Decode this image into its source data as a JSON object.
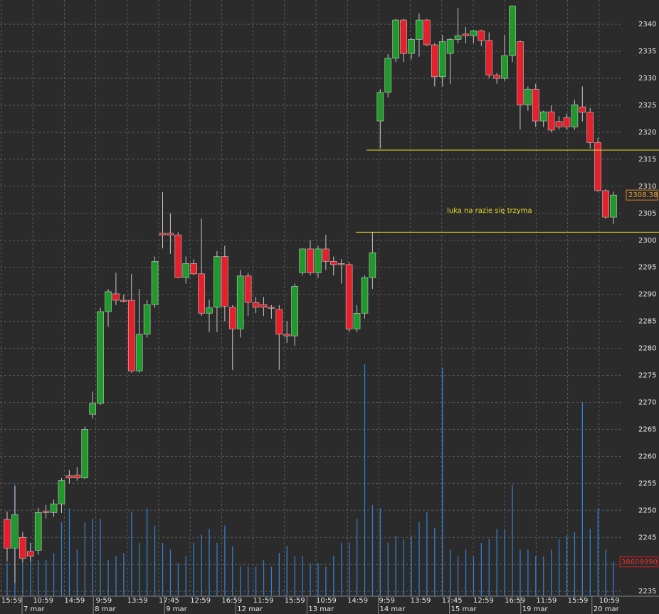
{
  "chart_data": {
    "type": "candlestick",
    "open": [
      2248.3,
      2243.0,
      2245.0,
      2242.4,
      2242.6,
      2249.8,
      2249.6,
      2251.2,
      2256.4,
      2256.5,
      2256.0,
      2267.8,
      2269.8,
      2286.8,
      2290.1,
      2288.9,
      2288.9,
      2275.8,
      2282.6,
      2288.1,
      2301.3,
      2301.3,
      2301.0,
      2293.1,
      2295.7,
      2293.8,
      2286.5,
      2287.6,
      2297.0,
      2287.6,
      2283.6,
      2293.4,
      2288.5,
      2288.1,
      2287.6,
      2287.2,
      2282.6,
      2282.3,
      2294.0,
      2298.4,
      2294.0,
      2298.4,
      2296.1,
      2295.7,
      2295.5,
      2283.6,
      2286.5,
      2293.1,
      2322.1,
      2327.4,
      2333.7,
      2340.8,
      2334.6,
      2337.2,
      2340.8,
      2336.2,
      2330.3,
      2334.6,
      2337.2,
      2338.2,
      2337.9,
      2338.8,
      2337.0,
      2330.6,
      2330.0,
      2334.2,
      2336.8,
      2325.1,
      2328.0,
      2322.1,
      2323.8,
      2322.0,
      2322.7,
      2321.0,
      2324.7,
      2323.7,
      2318.1,
      2309.2,
      2304.3
    ],
    "high": [
      2249.8,
      2254.5,
      2246.0,
      2244.0,
      2250.5,
      2251.0,
      2252.0,
      2256.0,
      2257.5,
      2258.0,
      2265.5,
      2272.0,
      2287.5,
      2291.0,
      2294.0,
      2290.0,
      2293.8,
      2291.0,
      2289.0,
      2297.0,
      2308.9,
      2305.0,
      2301.5,
      2297.0,
      2296.5,
      2304.0,
      2289.0,
      2298.0,
      2299.0,
      2288.0,
      2294.5,
      2294.0,
      2289.5,
      2289.5,
      2288.0,
      2288.0,
      2285.0,
      2292.0,
      2298.5,
      2300.0,
      2299.0,
      2301.0,
      2297.0,
      2296.5,
      2296.0,
      2288.0,
      2293.5,
      2301.5,
      2328.0,
      2334.5,
      2341.0,
      2341.0,
      2337.5,
      2342.0,
      2341.0,
      2336.5,
      2338.0,
      2337.5,
      2343.0,
      2339.5,
      2339.0,
      2339.0,
      2338.5,
      2331.0,
      2338.0,
      2343.5,
      2337.0,
      2328.5,
      2329.0,
      2324.0,
      2325.0,
      2323.0,
      2323.5,
      2326.0,
      2328.5,
      2324.5,
      2319.0,
      2309.5,
      2309.0
    ],
    "low": [
      2240.5,
      2236.5,
      2240.3,
      2240.5,
      2241.8,
      2248.5,
      2248.8,
      2249.5,
      2255.0,
      2255.5,
      2255.8,
      2267.0,
      2269.5,
      2284.0,
      2288.0,
      2288.5,
      2275.5,
      2275.5,
      2282.0,
      2287.5,
      2298.5,
      2297.5,
      2293.0,
      2292.0,
      2293.5,
      2286.0,
      2283.0,
      2283.0,
      2285.0,
      2276.0,
      2282.0,
      2286.0,
      2286.5,
      2286.0,
      2285.5,
      2276.0,
      2281.0,
      2280.5,
      2293.5,
      2293.5,
      2293.0,
      2294.5,
      2293.5,
      2292.0,
      2283.0,
      2283.0,
      2285.5,
      2291.0,
      2317.0,
      2326.5,
      2333.0,
      2333.0,
      2333.5,
      2334.0,
      2336.0,
      2328.5,
      2328.5,
      2329.0,
      2336.5,
      2336.5,
      2336.5,
      2336.0,
      2330.0,
      2329.0,
      2329.5,
      2333.0,
      2320.5,
      2324.0,
      2321.0,
      2321.0,
      2320.0,
      2320.5,
      2320.5,
      2320.5,
      2322.0,
      2317.0,
      2309.0,
      2304.0,
      2303.0
    ],
    "close": [
      2243.0,
      2249.2,
      2241.1,
      2241.5,
      2249.6,
      2249.6,
      2251.2,
      2255.5,
      2256.0,
      2256.0,
      2265.0,
      2269.8,
      2286.8,
      2290.5,
      2288.9,
      2288.7,
      2275.8,
      2282.6,
      2288.1,
      2296.1,
      2301.0,
      2301.0,
      2293.1,
      2295.7,
      2293.8,
      2286.5,
      2287.5,
      2297.0,
      2287.8,
      2283.6,
      2293.4,
      2288.5,
      2287.6,
      2287.6,
      2287.4,
      2282.6,
      2282.3,
      2291.5,
      2298.4,
      2294.0,
      2298.4,
      2296.1,
      2295.5,
      2295.5,
      2283.6,
      2286.5,
      2293.1,
      2297.7,
      2327.4,
      2333.7,
      2340.8,
      2334.6,
      2337.2,
      2340.8,
      2336.2,
      2330.3,
      2336.8,
      2337.2,
      2337.9,
      2337.9,
      2338.8,
      2337.0,
      2330.6,
      2330.0,
      2334.2,
      2343.4,
      2325.1,
      2328.0,
      2322.1,
      2323.8,
      2320.4,
      2321.0,
      2321.0,
      2325.1,
      2323.7,
      2318.1,
      2309.2,
      2304.3,
      2308.38
    ],
    "volume": [
      37100000,
      125800000,
      37100000,
      60200000,
      40900000,
      40900000,
      48600000,
      83400000,
      98800000,
      52500000,
      83400000,
      87200000,
      87200000,
      40900000,
      44800000,
      48600000,
      95000000,
      60200000,
      98800000,
      79500000,
      60200000,
      52500000,
      37100000,
      44800000,
      60200000,
      69500000,
      75700000,
      60200000,
      79500000,
      56400000,
      33200000,
      33200000,
      33200000,
      40900000,
      33200000,
      48600000,
      56400000,
      44800000,
      44800000,
      37100000,
      37100000,
      33200000,
      44800000,
      60200000,
      60200000,
      87200000,
      260900000,
      102700000,
      98800000,
      60200000,
      67900000,
      64100000,
      67900000,
      83400000,
      95000000,
      77200000,
      257100000,
      52500000,
      44800000,
      52500000,
      44800000,
      60200000,
      64100000,
      75700000,
      75700000,
      125800000,
      52500000,
      52500000,
      44800000,
      44800000,
      52500000,
      64100000,
      67900000,
      71800000,
      218500000,
      75700000,
      98800000,
      52500000,
      38609990
    ],
    "up_color": "#1f9a2a",
    "down_color": "#e5202a",
    "volume_color": "#2f7fd0",
    "ylim": [
      2234.1,
      2344.5
    ],
    "yticks": [
      2235,
      2240,
      2245,
      2250,
      2255,
      2260,
      2265,
      2270,
      2275,
      2280,
      2285,
      2290,
      2295,
      2300,
      2305,
      2310,
      2315,
      2320,
      2325,
      2330,
      2335,
      2340
    ],
    "grid": true,
    "time_labels": [
      "15:59",
      "10:59",
      "14:59",
      "9:59",
      "13:59",
      "17:45",
      "12:59",
      "16:59",
      "11:59",
      "15:59",
      "10:59",
      "14:59",
      "9:59",
      "13:59",
      "17:45",
      "12:59",
      "16:59",
      "11:59",
      "15:59",
      "10:59"
    ],
    "date_labels": [
      "7 mar",
      "8 mar",
      "9 mar",
      "12 mar",
      "13 mar",
      "14 mar",
      "15 mar",
      "19 mar",
      "20 mar"
    ],
    "levels": [
      2316.7,
      2301.5
    ],
    "level_color": "#e3dc2a",
    "annotation": "luka na razie się trzyma"
  }
}
